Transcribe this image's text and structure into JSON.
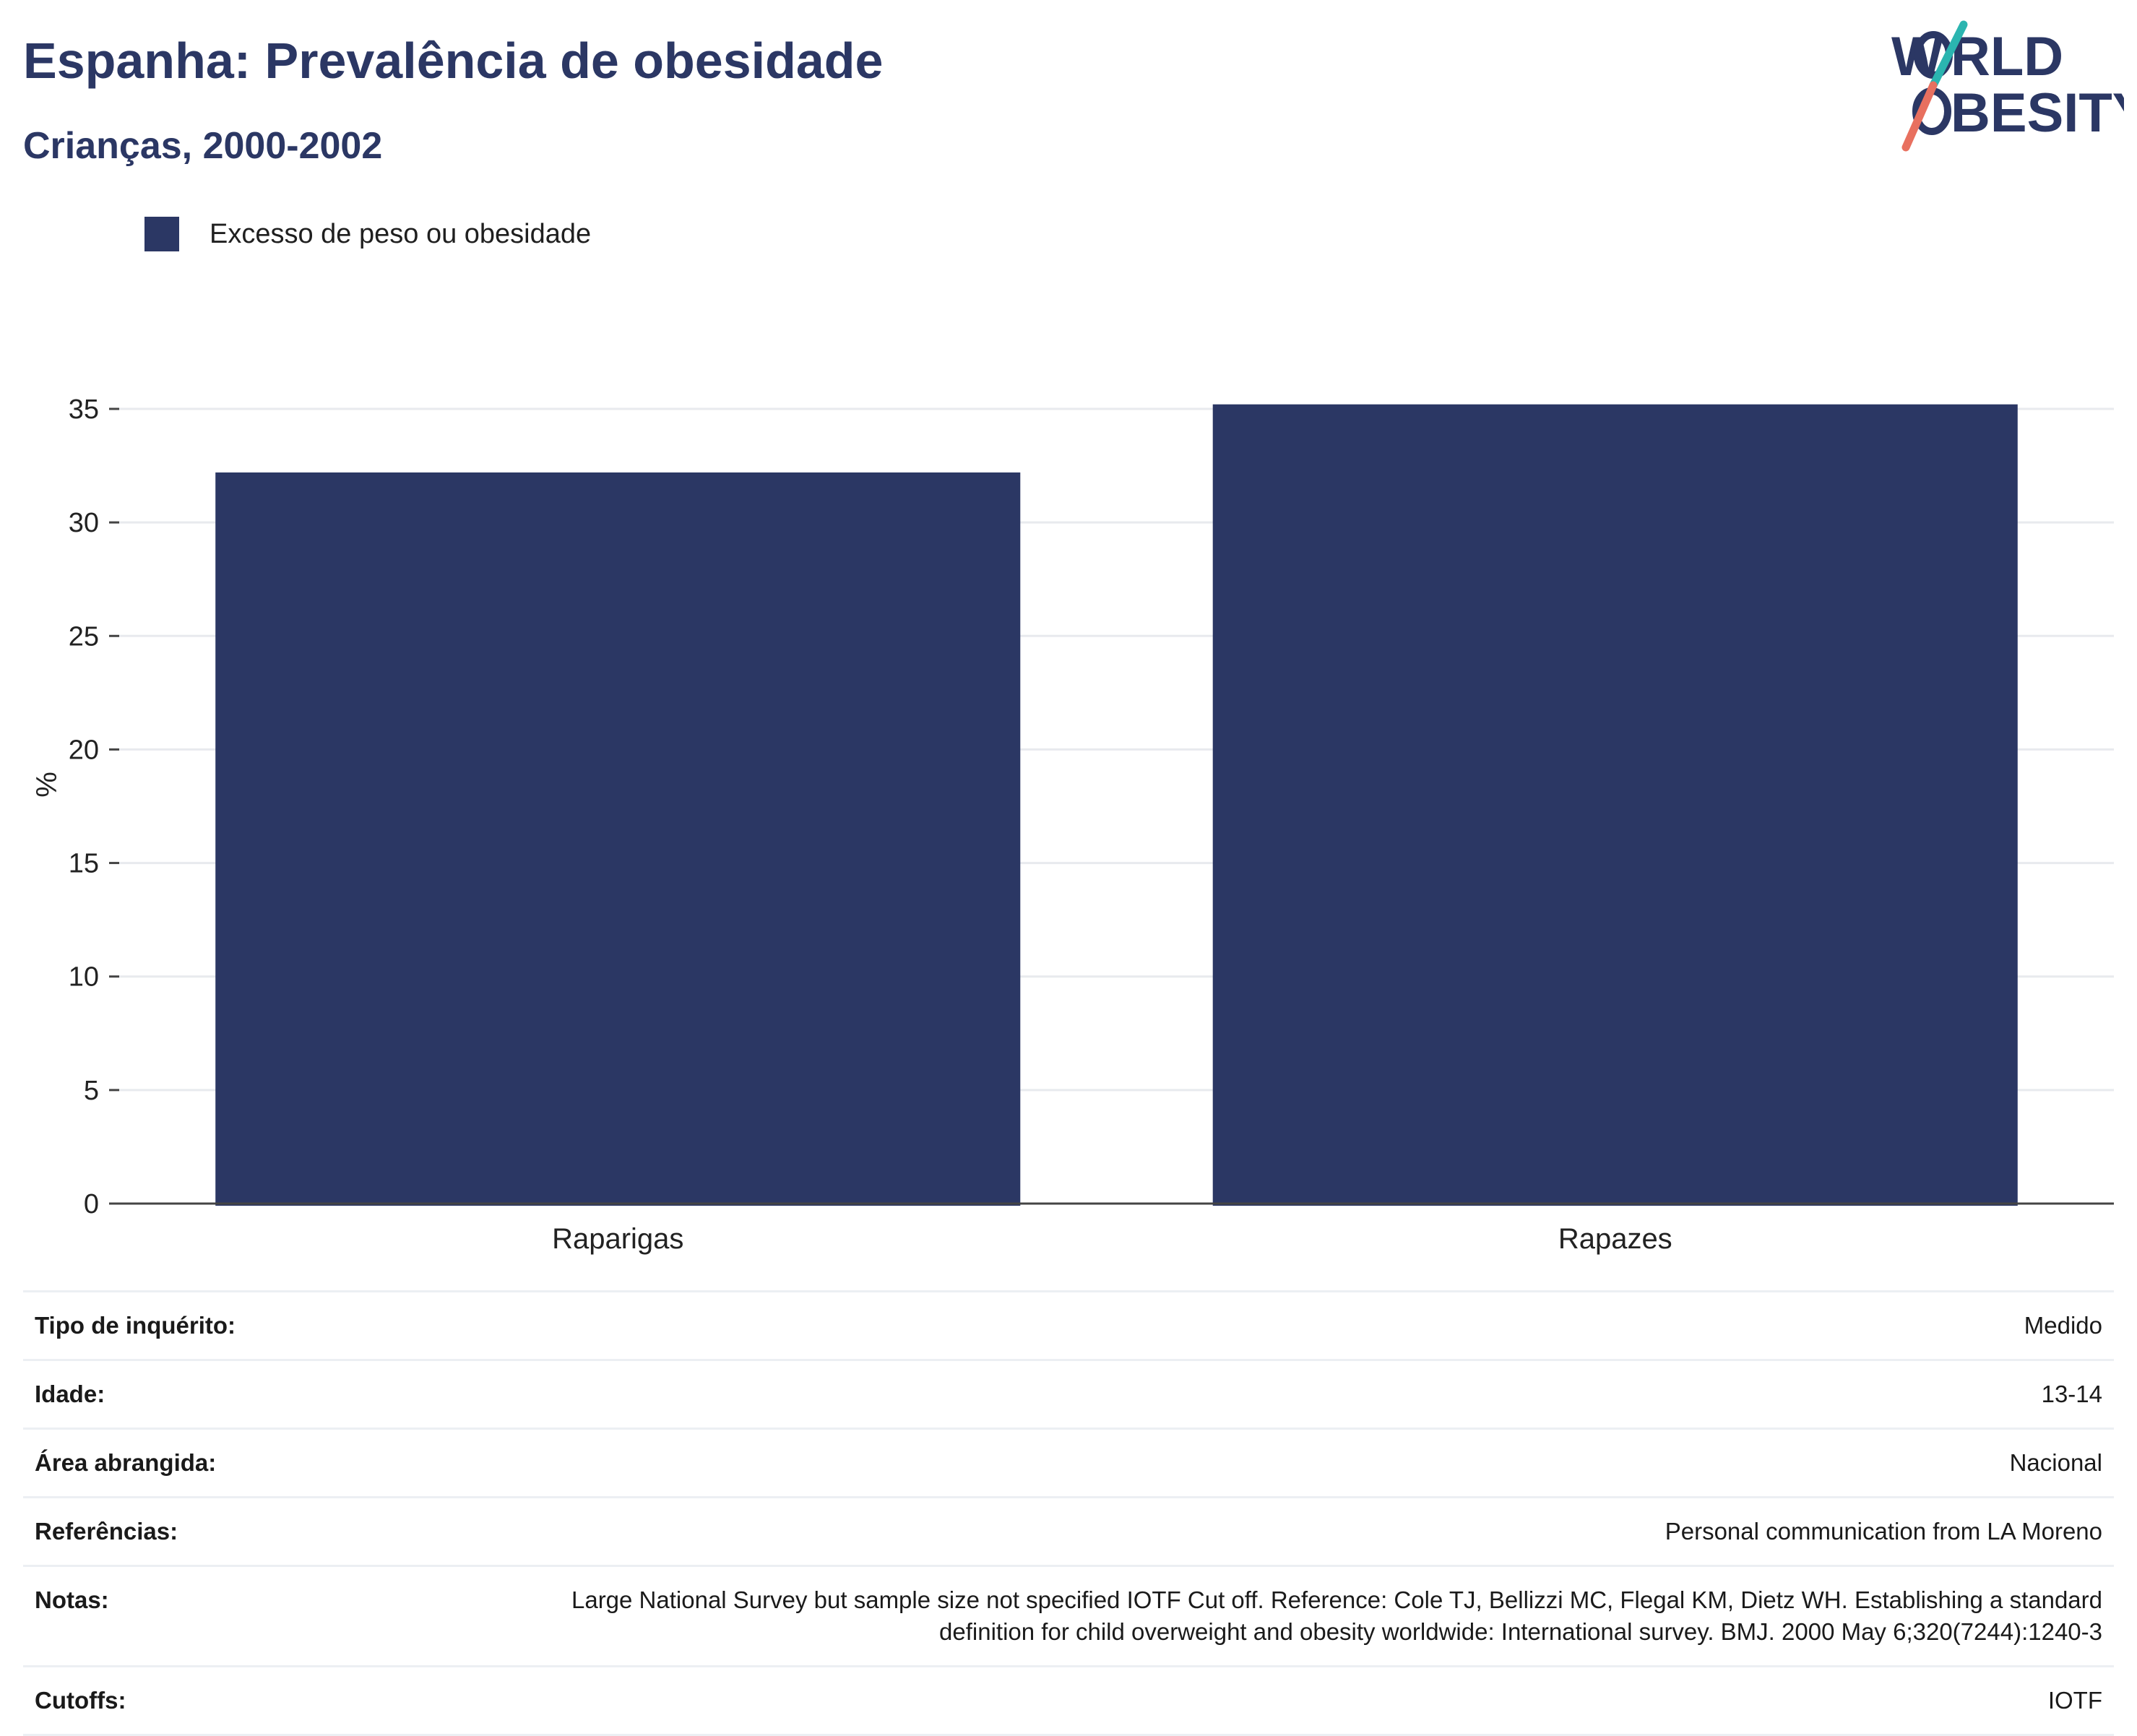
{
  "header": {
    "title": "Espanha: Prevalência de obesidade",
    "subtitle": "Crianças, 2000-2002"
  },
  "logo": {
    "line1": "W",
    "line1b": "RLD",
    "line2b": "BESITY",
    "colors": {
      "text": "#2b3764",
      "teal": "#2bb5b0",
      "coral": "#e8705f"
    }
  },
  "legend": {
    "label": "Excesso de peso ou obesidade",
    "color": "#2b3764"
  },
  "chart_data": {
    "type": "bar",
    "categories": [
      "Raparigas",
      "Rapazes"
    ],
    "series": [
      {
        "name": "Excesso de peso ou obesidade",
        "values": [
          32.2,
          35.2
        ],
        "color": "#2b3764"
      }
    ],
    "ylabel": "%",
    "ylim": [
      0,
      35
    ],
    "yticks": [
      0,
      5,
      10,
      15,
      20,
      25,
      30,
      35
    ],
    "grid": true,
    "legend_position": "top-left"
  },
  "info": [
    {
      "label": "Tipo de inquérito:",
      "value": "Medido"
    },
    {
      "label": "Idade:",
      "value": "13-14"
    },
    {
      "label": "Área abrangida:",
      "value": "Nacional"
    },
    {
      "label": "Referências:",
      "value": "Personal communication from LA Moreno"
    },
    {
      "label": "Notas:",
      "value": "Large National Survey but sample size not specified IOTF Cut off. Reference: Cole TJ, Bellizzi MC, Flegal KM, Dietz WH. Establishing a standard definition for child overweight and obesity worldwide: International survey. BMJ. 2000 May 6;320(7244):1240-3"
    },
    {
      "label": "Cutoffs:",
      "value": "IOTF"
    }
  ]
}
